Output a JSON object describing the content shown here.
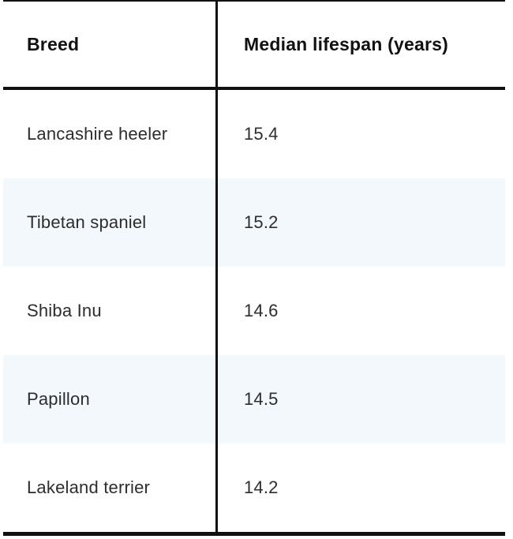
{
  "table": {
    "header": [
      "Breed",
      "Median lifespan (years)"
    ],
    "rows": [
      {
        "breed": "Lancashire heeler",
        "value": "15.4"
      },
      {
        "breed": "Tibetan spaniel",
        "value": "15.2"
      },
      {
        "breed": "Shiba Inu",
        "value": "14.6"
      },
      {
        "breed": "Papillon",
        "value": "14.5"
      },
      {
        "breed": "Lakeland terrier",
        "value": "14.2"
      }
    ]
  },
  "chart_data": {
    "type": "table",
    "title": "",
    "columns": [
      "Breed",
      "Median lifespan (years)"
    ],
    "rows": [
      [
        "Lancashire heeler",
        15.4
      ],
      [
        "Tibetan spaniel",
        15.2
      ],
      [
        "Shiba Inu",
        14.6
      ],
      [
        "Papillon",
        14.5
      ],
      [
        "Lakeland terrier",
        14.2
      ]
    ],
    "notes": "Alternating light-blue row striping on rows 2 and 4; bold header row; black rules: thin top, thick below header, thick bottom; full-height vertical divider between columns."
  },
  "colors": {
    "border": "#111111",
    "header_text": "#111111",
    "body_text": "#2d2d2d",
    "alt_row_background": "#f2f8fb",
    "background": "#ffffff"
  }
}
